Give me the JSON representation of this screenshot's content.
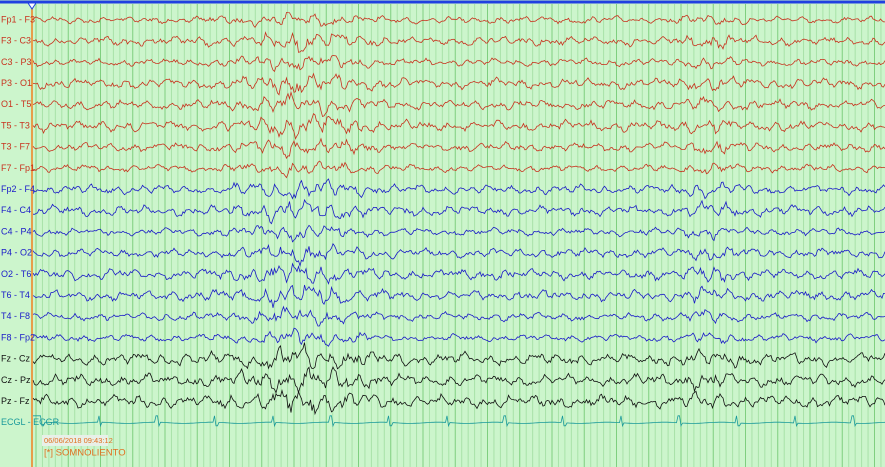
{
  "groups": [
    {
      "color": "#c8321e",
      "channels": [
        "Fp1 - F3",
        "F3 - C3",
        "C3 - P3",
        "P3 - O1",
        "O1 - T5",
        "T5 - T3",
        "T3 - F7",
        "F7 - Fp1"
      ]
    },
    {
      "color": "#1a1ac8",
      "channels": [
        "Fp2 - F4",
        "F4 - C4",
        "C4 - P4",
        "P4 - O2",
        "O2 - T6",
        "T6 - T4",
        "T4 - F8",
        "F8 - Fp2"
      ]
    },
    {
      "color": "#101010",
      "channels": [
        "Fz - Cz",
        "Cz - Pz",
        "Pz - Fz"
      ]
    },
    {
      "color": "#1a9a9a",
      "channels": [
        "ECGL - ECGR"
      ]
    }
  ],
  "timestamp": "06/06/2018 09:43:12",
  "annotation": "[*] SOMNOLIENTO"
}
